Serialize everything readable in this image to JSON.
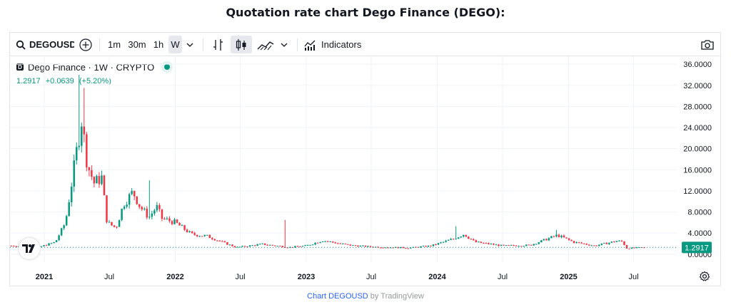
{
  "page_title": "Quotation rate chart Dego Finance (DEGO):",
  "toolbar": {
    "symbol": "DEGOUSD",
    "intervals": [
      "1m",
      "30m",
      "1h",
      "W"
    ],
    "active_interval": "W",
    "indicators_label": "Indicators"
  },
  "legend": {
    "instrument": "Dego Finance · 1W · CRYPTO",
    "last": "1.2917",
    "change": "+0.0639",
    "change_pct": "(+5.20%)"
  },
  "credit": {
    "link": "Chart DEGOUSD",
    "suffix": " by TradingView"
  },
  "colors": {
    "up": "#089981",
    "down": "#f23645",
    "grid": "#f0f3fa",
    "axis_text": "#131722",
    "price_tag": "#089981"
  },
  "chart_data": {
    "type": "candlestick",
    "title": "",
    "x_tick_labels": [
      "2021",
      "Jul",
      "2022",
      "Jul",
      "2023",
      "Jul",
      "2024",
      "Jul",
      "2025",
      "Jul"
    ],
    "y_tick_labels": [
      "0.0000",
      "4.0000",
      "8.0000",
      "12.0000",
      "16.0000",
      "20.0000",
      "24.0000",
      "28.0000",
      "32.0000",
      "36.0000"
    ],
    "ylim": [
      -1.5,
      37.5
    ],
    "grid": true,
    "last_price_label": "1.2917",
    "last_price": 1.2917,
    "anchors": [
      [
        "2020-10-01",
        1.6
      ],
      [
        "2020-12-15",
        1.3
      ],
      [
        "2021-02-01",
        2.3
      ],
      [
        "2021-03-01",
        6.0
      ],
      [
        "2021-04-15",
        25.5
      ],
      [
        "2021-05-01",
        17.0
      ],
      [
        "2021-05-20",
        13.5
      ],
      [
        "2021-06-10",
        14.5
      ],
      [
        "2021-06-25",
        6.0
      ],
      [
        "2021-07-20",
        5.0
      ],
      [
        "2021-08-10",
        9.5
      ],
      [
        "2021-09-05",
        11.8
      ],
      [
        "2021-09-25",
        9.0
      ],
      [
        "2021-10-20",
        7.0
      ],
      [
        "2021-11-10",
        9.0
      ],
      [
        "2021-11-25",
        6.8
      ],
      [
        "2022-01-01",
        6.0
      ],
      [
        "2022-02-15",
        3.8
      ],
      [
        "2022-04-01",
        3.4
      ],
      [
        "2022-05-15",
        2.2
      ],
      [
        "2022-06-20",
        1.3
      ],
      [
        "2022-09-01",
        1.9
      ],
      [
        "2022-11-15",
        1.3
      ],
      [
        "2023-01-01",
        1.6
      ],
      [
        "2023-02-15",
        2.6
      ],
      [
        "2023-05-01",
        1.7
      ],
      [
        "2023-07-01",
        1.4
      ],
      [
        "2023-10-15",
        1.2
      ],
      [
        "2023-12-15",
        1.6
      ],
      [
        "2024-02-15",
        2.9
      ],
      [
        "2024-03-15",
        3.8
      ],
      [
        "2024-04-15",
        2.3
      ],
      [
        "2024-07-01",
        1.6
      ],
      [
        "2024-09-15",
        1.7
      ],
      [
        "2024-12-01",
        3.6
      ],
      [
        "2025-01-15",
        2.3
      ],
      [
        "2025-03-15",
        1.6
      ],
      [
        "2025-05-15",
        2.5
      ],
      [
        "2025-06-01",
        2.4
      ],
      [
        "2025-06-10",
        1.1
      ],
      [
        "2025-08-01",
        1.2917
      ]
    ],
    "spikes": [
      [
        "2021-04-10",
        34.0
      ],
      [
        "2021-04-24",
        31.5
      ],
      [
        "2021-10-20",
        14.0
      ],
      [
        "2022-11-06",
        6.5
      ],
      [
        "2024-02-25",
        5.3
      ],
      [
        "2024-12-01",
        4.6
      ]
    ]
  }
}
